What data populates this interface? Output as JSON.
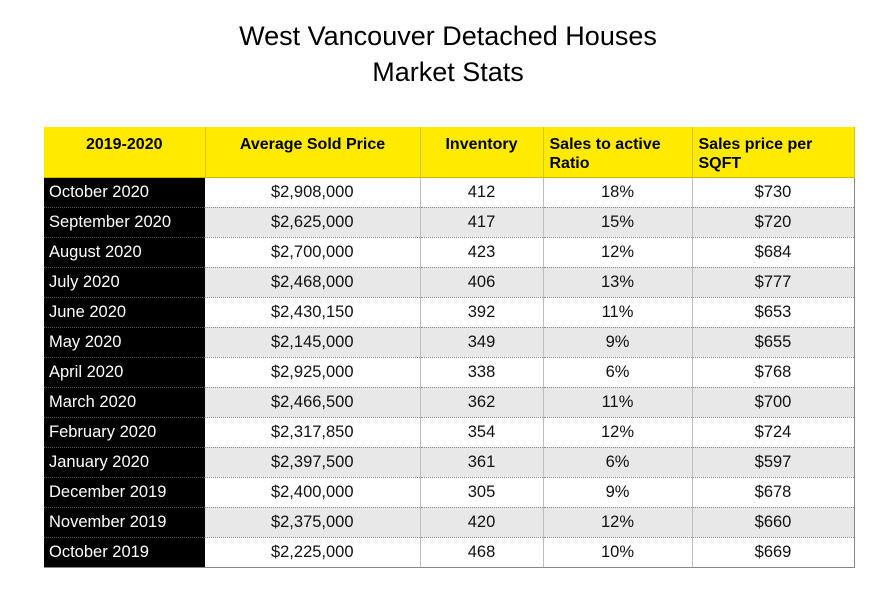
{
  "title": {
    "line1": "West Vancouver Detached Houses",
    "line2": "Market Stats"
  },
  "colors": {
    "header_bg": "#ffea00",
    "month_bg": "#000000",
    "alt_row_bg": "#e8e8e8"
  },
  "table": {
    "headers": [
      "2019-2020",
      "Average Sold Price",
      "Inventory",
      "Sales to active Ratio",
      "Sales price per SQFT"
    ],
    "rows": [
      [
        "October 2020",
        "$2,908,000",
        "412",
        "18%",
        "$730"
      ],
      [
        "September 2020",
        "$2,625,000",
        "417",
        "15%",
        "$720"
      ],
      [
        "August 2020",
        "$2,700,000",
        "423",
        "12%",
        "$684"
      ],
      [
        "July 2020",
        "$2,468,000",
        "406",
        "13%",
        "$777"
      ],
      [
        "June 2020",
        "$2,430,150",
        "392",
        "11%",
        "$653"
      ],
      [
        "May 2020",
        "$2,145,000",
        "349",
        "9%",
        "$655"
      ],
      [
        "April 2020",
        "$2,925,000",
        "338",
        "6%",
        "$768"
      ],
      [
        "March 2020",
        "$2,466,500",
        "362",
        "11%",
        "$700"
      ],
      [
        "February 2020",
        "$2,317,850",
        "354",
        "12%",
        "$724"
      ],
      [
        "January 2020",
        "$2,397,500",
        "361",
        "6%",
        "$597"
      ],
      [
        "December 2019",
        "$2,400,000",
        "305",
        "9%",
        "$678"
      ],
      [
        "November 2019",
        "$2,375,000",
        "420",
        "12%",
        "$660"
      ],
      [
        "October 2019",
        "$2,225,000",
        "468",
        "10%",
        "$669"
      ]
    ]
  }
}
